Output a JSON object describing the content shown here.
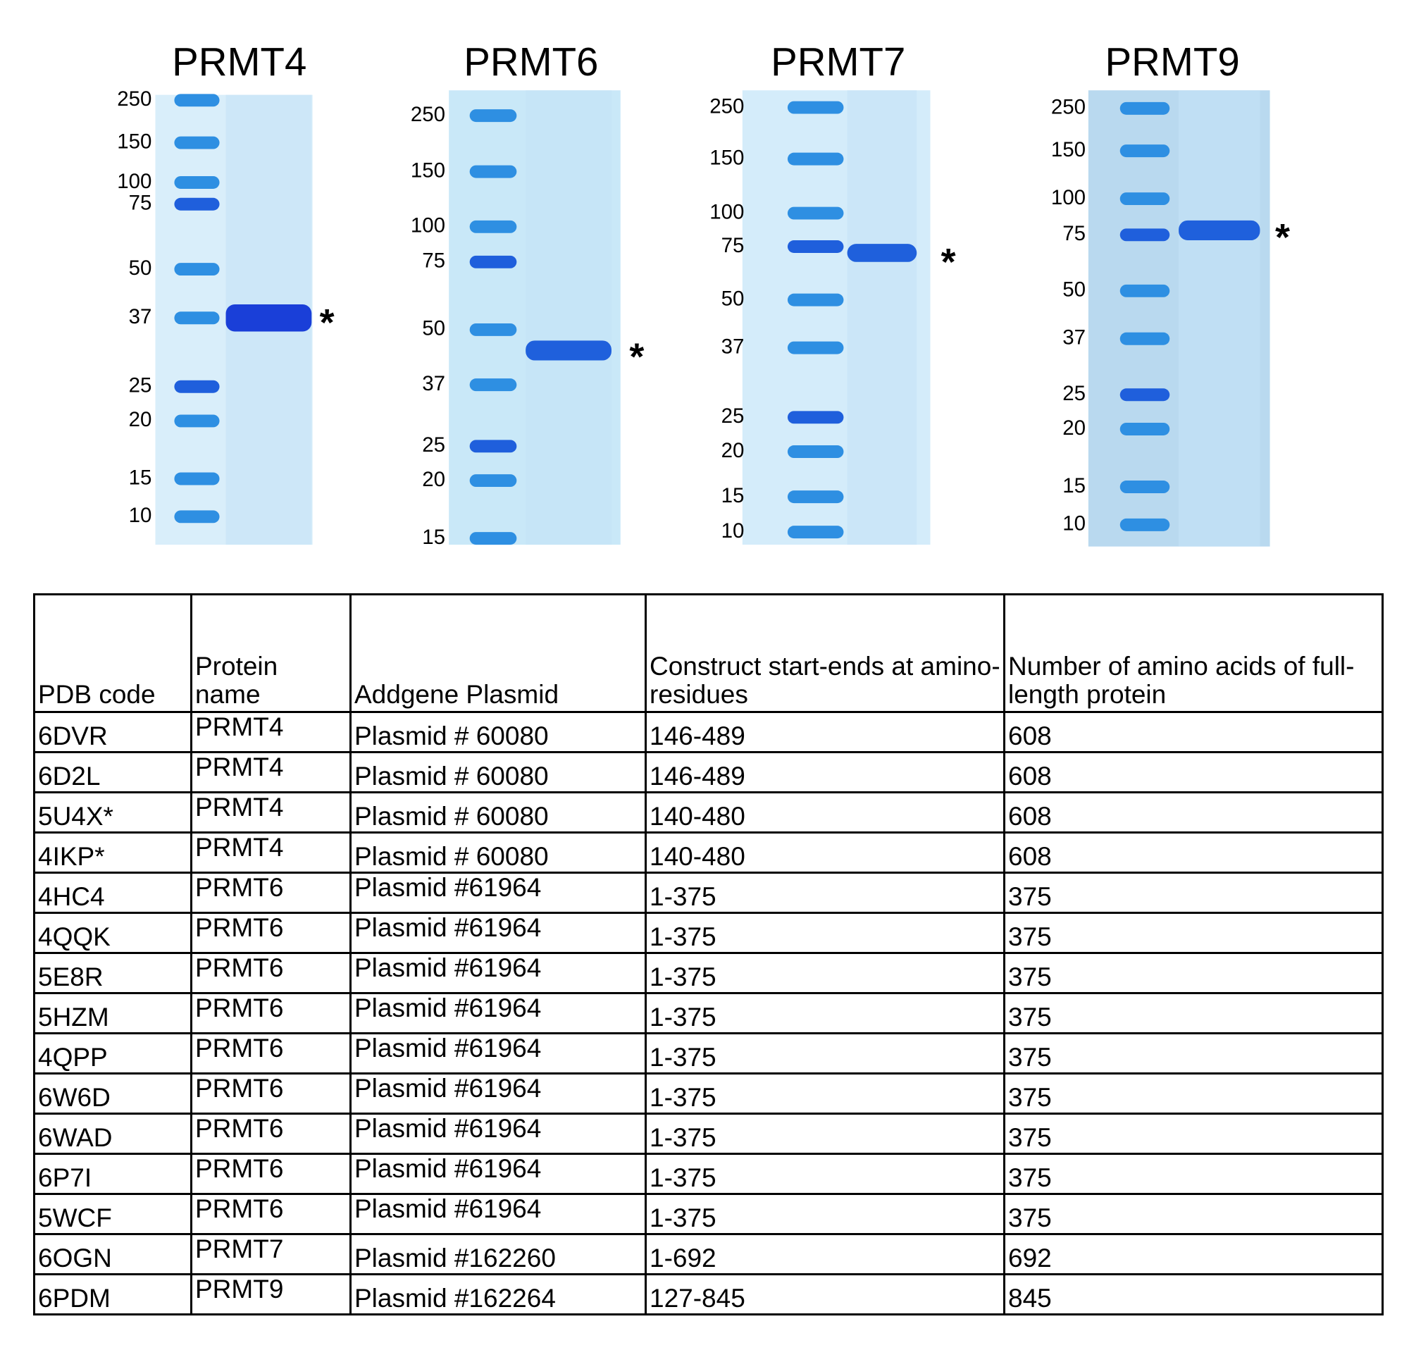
{
  "gels": [
    {
      "title": "PRMT4",
      "markers": [
        "250",
        "150",
        "100",
        "75",
        "50",
        "37",
        "25",
        "20",
        "15",
        "10"
      ],
      "band_marker": "*"
    },
    {
      "title": "PRMT6",
      "markers": [
        "250",
        "150",
        "100",
        "75",
        "50",
        "37",
        "25",
        "20",
        "15"
      ],
      "band_marker": "*"
    },
    {
      "title": "PRMT7",
      "markers": [
        "250",
        "150",
        "100",
        "75",
        "50",
        "37",
        "25",
        "20",
        "15",
        "10"
      ],
      "band_marker": "*"
    },
    {
      "title": "PRMT9",
      "markers": [
        "250",
        "150",
        "100",
        "75",
        "50",
        "37",
        "25",
        "20",
        "15",
        "10"
      ],
      "band_marker": "*"
    }
  ],
  "table": {
    "header": [
      "PDB code",
      "Protein name",
      "Addgene Plasmid",
      "Construct start-ends at amino-residues",
      "Number of amino acids of full-length protein"
    ],
    "rows": [
      [
        "6DVR",
        "PRMT4",
        "Plasmid # 60080",
        "146-489",
        "608"
      ],
      [
        "6D2L",
        "PRMT4",
        "Plasmid # 60080",
        "146-489",
        "608"
      ],
      [
        "5U4X*",
        "PRMT4",
        "Plasmid # 60080",
        "140-480",
        "608"
      ],
      [
        "4IKP*",
        "PRMT4",
        "Plasmid # 60080",
        "140-480",
        "608"
      ],
      [
        "4HC4",
        "PRMT6",
        "Plasmid #61964",
        "1-375",
        "375"
      ],
      [
        "4QQK",
        "PRMT6",
        "Plasmid #61964",
        "1-375",
        "375"
      ],
      [
        "5E8R",
        "PRMT6",
        "Plasmid #61964",
        "1-375",
        "375"
      ],
      [
        "5HZM",
        "PRMT6",
        "Plasmid #61964",
        "1-375",
        "375"
      ],
      [
        "4QPP",
        "PRMT6",
        "Plasmid #61964",
        "1-375",
        "375"
      ],
      [
        "6W6D",
        "PRMT6",
        "Plasmid #61964",
        "1-375",
        "375"
      ],
      [
        "6WAD",
        "PRMT6",
        "Plasmid #61964",
        "1-375",
        "375"
      ],
      [
        "6P7I",
        "PRMT6",
        "Plasmid #61964",
        "1-375",
        "375"
      ],
      [
        "5WCF",
        "PRMT6",
        "Plasmid #61964",
        "1-375",
        "375"
      ],
      [
        "6OGN",
        "PRMT7",
        "Plasmid #162260",
        "1-692",
        "692"
      ],
      [
        "6PDM",
        "PRMT9",
        "Plasmid #162264",
        "127-845",
        "845"
      ]
    ]
  }
}
